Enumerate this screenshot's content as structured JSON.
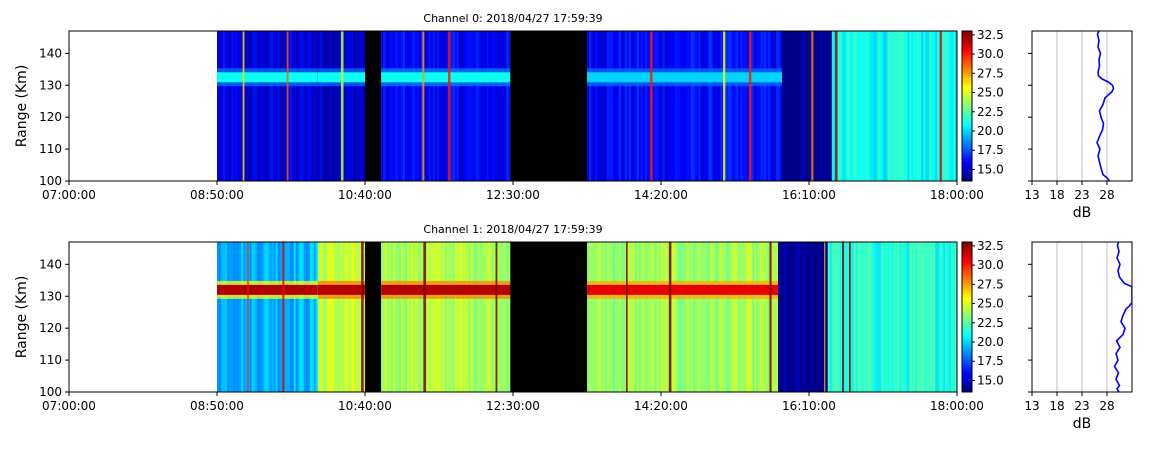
{
  "chart_data": [
    {
      "type": "heatmap",
      "title": "Channel 0: 2018/04/27 17:59:39",
      "ylabel": "Range (Km)",
      "xlabel": "",
      "xlim": [
        "07:00:00",
        "18:00:00"
      ],
      "ylim": [
        100,
        147
      ],
      "x_ticks": [
        "07:00:00",
        "08:50:00",
        "10:40:00",
        "12:30:00",
        "14:20:00",
        "16:10:00",
        "18:00:00"
      ],
      "y_ticks": [
        100,
        110,
        120,
        130,
        140
      ],
      "colorscale": "jet",
      "colorbar": {
        "min": 13.5,
        "max": 33,
        "ticks": [
          "15.0",
          "17.5",
          "20.0",
          "22.5",
          "25.0",
          "27.5",
          "30.0",
          "32.5"
        ]
      },
      "band": {
        "range_km": 132.5,
        "intensity_db": 21
      },
      "segments": [
        {
          "start": "08:50:00",
          "end": "10:05:00",
          "background_db": 15.2,
          "band_db": 21
        },
        {
          "start": "10:05:00",
          "end": "10:40:00",
          "background_db": 15.0,
          "band_db": 21
        },
        {
          "start": "10:40:00",
          "end": "10:52:00",
          "background_db": "no data"
        },
        {
          "start": "10:52:00",
          "end": "12:28:00",
          "background_db": 15.8,
          "band_db": 21
        },
        {
          "start": "12:28:00",
          "end": "13:25:00",
          "background_db": "no data"
        },
        {
          "start": "13:25:00",
          "end": "15:50:00",
          "background_db": 16.0,
          "band_db": 20
        },
        {
          "start": "15:50:00",
          "end": "16:27:00",
          "background_db": 13.8
        },
        {
          "start": "16:27:00",
          "end": "18:00:00",
          "background_db": 21.0
        }
      ],
      "profile": {
        "xlabel": "dB",
        "xlim": [
          13,
          33
        ],
        "x_ticks": [
          "13",
          "18",
          "23",
          "28"
        ],
        "range_km": [
          100,
          101,
          102,
          104,
          106,
          108,
          110,
          112,
          114,
          116,
          118,
          120,
          122,
          124,
          126,
          127,
          128,
          129,
          130,
          131,
          132,
          133,
          134,
          136,
          138,
          140,
          142,
          144,
          146,
          147
        ],
        "values_db": [
          28.5,
          28,
          27.2,
          26.8,
          26.5,
          26.2,
          26.6,
          26.0,
          26.5,
          27.1,
          27.3,
          26.8,
          26.5,
          27.2,
          27.6,
          28.3,
          29.0,
          29.3,
          29.1,
          28.3,
          27.0,
          26.3,
          26.2,
          26.5,
          26.4,
          26.7,
          26.2,
          26.4,
          26.1,
          26.4
        ]
      }
    },
    {
      "type": "heatmap",
      "title": "Channel 1: 2018/04/27 17:59:39",
      "ylabel": "Range (Km)",
      "xlabel": "",
      "xlim": [
        "07:00:00",
        "18:00:00"
      ],
      "ylim": [
        100,
        147
      ],
      "x_ticks": [
        "07:00:00",
        "08:50:00",
        "10:40:00",
        "12:30:00",
        "14:20:00",
        "16:10:00",
        "18:00:00"
      ],
      "y_ticks": [
        100,
        110,
        120,
        130,
        140
      ],
      "colorscale": "jet",
      "colorbar": {
        "min": 13.5,
        "max": 33,
        "ticks": [
          "15.0",
          "17.5",
          "20.0",
          "22.5",
          "25.0",
          "27.5",
          "30.0",
          "32.5"
        ]
      },
      "band": {
        "range_km": 132.0,
        "intensity_db": 32
      },
      "segments": [
        {
          "start": "08:50:00",
          "end": "10:05:00",
          "background_db": 19.5,
          "band_db": 32
        },
        {
          "start": "10:05:00",
          "end": "10:40:00",
          "background_db": 24.5,
          "band_db": 32
        },
        {
          "start": "10:40:00",
          "end": "10:52:00",
          "background_db": "no data"
        },
        {
          "start": "10:52:00",
          "end": "12:28:00",
          "background_db": 24.2,
          "band_db": 32
        },
        {
          "start": "12:28:00",
          "end": "13:25:00",
          "background_db": "no data"
        },
        {
          "start": "13:25:00",
          "end": "15:47:00",
          "background_db": 23.8,
          "band_db": 31
        },
        {
          "start": "15:47:00",
          "end": "16:24:00",
          "background_db": 13.8
        },
        {
          "start": "16:24:00",
          "end": "18:00:00",
          "background_db": 21.5
        }
      ],
      "profile": {
        "xlabel": "dB",
        "xlim": [
          13,
          33
        ],
        "x_ticks": [
          "13",
          "18",
          "23",
          "28"
        ],
        "range_km": [
          100,
          101,
          102,
          104,
          106,
          108,
          110,
          112,
          114,
          116,
          118,
          120,
          122,
          124,
          126,
          127,
          128,
          129,
          130,
          131,
          132,
          133,
          134,
          136,
          138,
          140,
          142,
          144,
          146,
          147
        ],
        "values_db": [
          30.4,
          30.0,
          30.5,
          29.8,
          30.3,
          29.5,
          30.2,
          29.8,
          30.6,
          29.9,
          31.2,
          31.6,
          30.8,
          31.2,
          31.8,
          32.5,
          33.0,
          33.0,
          33.0,
          33.0,
          33.0,
          33.0,
          31.5,
          30.5,
          30.2,
          30.6,
          30.0,
          30.4,
          30.1,
          30.3
        ]
      }
    }
  ]
}
